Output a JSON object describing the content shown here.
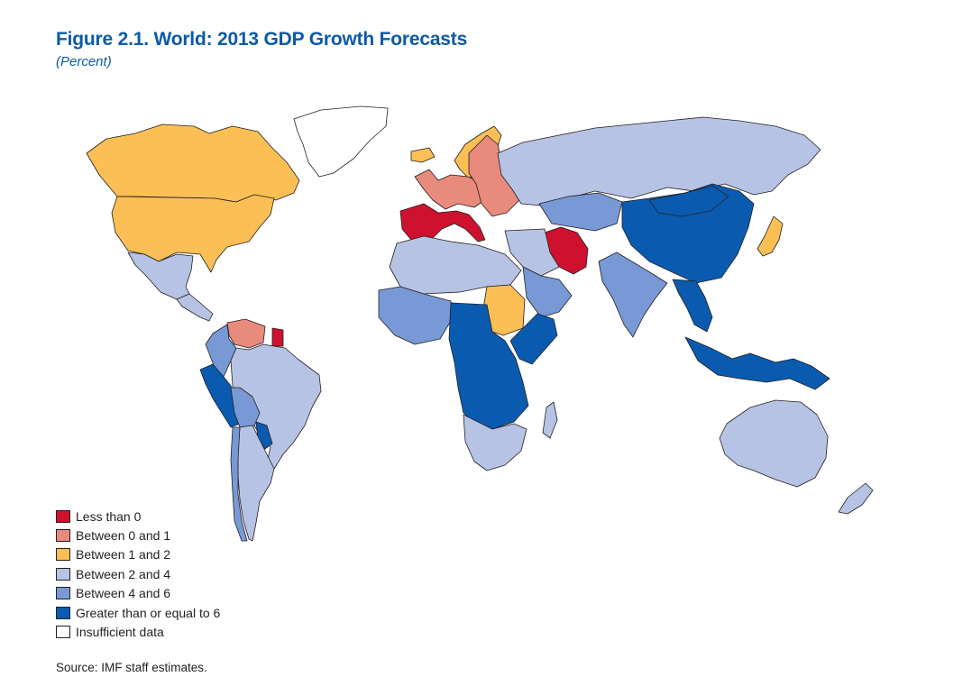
{
  "figure": {
    "title": "Figure 2.1.  World: 2013 GDP Growth Forecasts",
    "subtitle": "(Percent)"
  },
  "legend": {
    "items": [
      {
        "label": "Less than 0",
        "color": "#cf1130"
      },
      {
        "label": "Between 0 and 1",
        "color": "#e88a7c"
      },
      {
        "label": "Between 1 and 2",
        "color": "#fbbf55"
      },
      {
        "label": "Between 2 and 4",
        "color": "#b7c3e4"
      },
      {
        "label": "Between 4 and 6",
        "color": "#7899d5"
      },
      {
        "label": "Greater than or equal to 6",
        "color": "#0a5bb0"
      },
      {
        "label": "Insufficient data",
        "color": "#ffffff"
      }
    ]
  },
  "source": "Source: IMF staff estimates.",
  "map_regions": [
    {
      "name": "canada",
      "category": "Between 1 and 2"
    },
    {
      "name": "united-states",
      "category": "Between 1 and 2"
    },
    {
      "name": "greenland",
      "category": "Insufficient data"
    },
    {
      "name": "mexico",
      "category": "Between 2 and 4"
    },
    {
      "name": "central-america",
      "category": "Between 2 and 4"
    },
    {
      "name": "venezuela",
      "category": "Between 0 and 1"
    },
    {
      "name": "suriname",
      "category": "Less than 0"
    },
    {
      "name": "colombia",
      "category": "Between 4 and 6"
    },
    {
      "name": "peru",
      "category": "Greater than or equal to 6"
    },
    {
      "name": "brazil",
      "category": "Between 2 and 4"
    },
    {
      "name": "bolivia",
      "category": "Between 4 and 6"
    },
    {
      "name": "paraguay",
      "category": "Greater than or equal to 6"
    },
    {
      "name": "argentina",
      "category": "Between 2 and 4"
    },
    {
      "name": "chile",
      "category": "Between 4 and 6"
    },
    {
      "name": "iceland",
      "category": "Between 1 and 2"
    },
    {
      "name": "western-europe",
      "category": "Between 0 and 1"
    },
    {
      "name": "iberia-italy",
      "category": "Less than 0"
    },
    {
      "name": "scandinavia",
      "category": "Between 1 and 2"
    },
    {
      "name": "eastern-europe",
      "category": "Between 0 and 1"
    },
    {
      "name": "russia",
      "category": "Between 2 and 4"
    },
    {
      "name": "kazakhstan",
      "category": "Between 4 and 6"
    },
    {
      "name": "iran",
      "category": "Less than 0"
    },
    {
      "name": "middle-east",
      "category": "Between 2 and 4"
    },
    {
      "name": "saudi-arabia",
      "category": "Between 4 and 6"
    },
    {
      "name": "china",
      "category": "Greater than or equal to 6"
    },
    {
      "name": "mongolia",
      "category": "Greater than or equal to 6"
    },
    {
      "name": "india",
      "category": "Between 4 and 6"
    },
    {
      "name": "southeast-asia",
      "category": "Greater than or equal to 6"
    },
    {
      "name": "indonesia",
      "category": "Greater than or equal to 6"
    },
    {
      "name": "japan",
      "category": "Between 1 and 2"
    },
    {
      "name": "australia",
      "category": "Between 2 and 4"
    },
    {
      "name": "new-zealand",
      "category": "Between 2 and 4"
    },
    {
      "name": "north-africa",
      "category": "Between 2 and 4"
    },
    {
      "name": "west-africa",
      "category": "Between 4 and 6"
    },
    {
      "name": "sudan",
      "category": "Between 1 and 2"
    },
    {
      "name": "central-africa",
      "category": "Greater than or equal to 6"
    },
    {
      "name": "east-africa",
      "category": "Greater than or equal to 6"
    },
    {
      "name": "southern-africa",
      "category": "Between 2 and 4"
    },
    {
      "name": "madagascar",
      "category": "Between 2 and 4"
    }
  ]
}
